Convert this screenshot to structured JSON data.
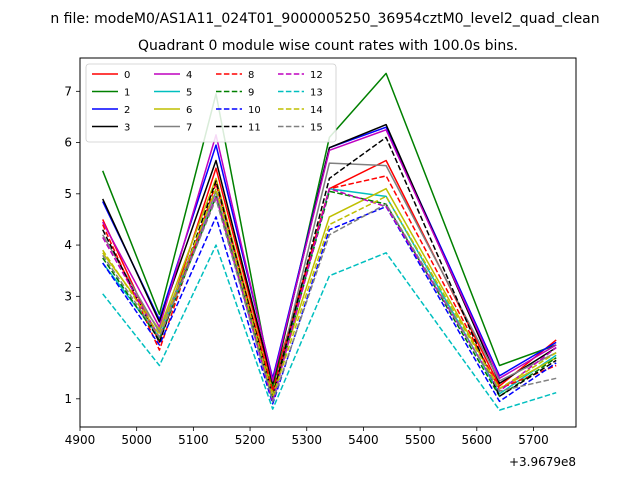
{
  "chart_data": {
    "type": "line",
    "suptitle": "n file: modeM0/AS1A11_024T01_9000005250_36954cztM0_level2_quad_clean",
    "title": "Quadrant 0 module wise count rates with 100.0s bins.",
    "xlabel": "",
    "ylabel": "",
    "x_offset_label": "+3.9679e8",
    "x_ticks": [
      "4900",
      "5000",
      "5100",
      "5200",
      "5300",
      "5400",
      "5500",
      "5600",
      "5700"
    ],
    "y_ticks": [
      "1",
      "2",
      "3",
      "4",
      "5",
      "6",
      "7"
    ],
    "xlim": [
      4900,
      5775
    ],
    "ylim": [
      0.45,
      7.65
    ],
    "grid": false,
    "legend_placement": "top-left",
    "legend_columns": 4,
    "x": [
      4940,
      5040,
      5140,
      5240,
      5340,
      5440,
      5640,
      5740
    ],
    "series": [
      {
        "name": "0",
        "color": "#ff0000",
        "style": "solid",
        "values": [
          4.5,
          2.1,
          5.5,
          1.25,
          5.1,
          5.65,
          1.25,
          2.15
        ]
      },
      {
        "name": "1",
        "color": "#008000",
        "style": "solid",
        "values": [
          5.45,
          2.65,
          6.95,
          1.2,
          6.1,
          7.35,
          1.65,
          2.05
        ]
      },
      {
        "name": "2",
        "color": "#0000ff",
        "style": "solid",
        "values": [
          4.85,
          2.55,
          5.95,
          1.4,
          5.9,
          6.3,
          1.45,
          2.1
        ]
      },
      {
        "name": "3",
        "color": "#000000",
        "style": "solid",
        "values": [
          4.9,
          2.5,
          5.65,
          1.3,
          5.9,
          6.35,
          1.3,
          2.0
        ]
      },
      {
        "name": "4",
        "color": "#bf00bf",
        "style": "solid",
        "values": [
          4.45,
          2.4,
          6.15,
          1.35,
          5.85,
          6.25,
          1.4,
          2.05
        ]
      },
      {
        "name": "5",
        "color": "#00bfbf",
        "style": "solid",
        "values": [
          3.65,
          2.2,
          5.05,
          1.05,
          5.1,
          4.95,
          1.1,
          1.85
        ]
      },
      {
        "name": "6",
        "color": "#bfbf00",
        "style": "solid",
        "values": [
          3.85,
          2.35,
          5.3,
          1.15,
          4.55,
          5.1,
          1.2,
          1.8
        ]
      },
      {
        "name": "7",
        "color": "#808080",
        "style": "solid",
        "values": [
          4.2,
          2.3,
          5.05,
          1.05,
          5.6,
          5.55,
          1.35,
          1.9
        ]
      },
      {
        "name": "8",
        "color": "#ff0000",
        "style": "dashed",
        "values": [
          4.4,
          1.95,
          5.2,
          1.15,
          5.1,
          5.35,
          1.2,
          1.65
        ]
      },
      {
        "name": "9",
        "color": "#008000",
        "style": "dashed",
        "values": [
          3.75,
          2.15,
          4.95,
          1.0,
          5.05,
          4.8,
          1.05,
          1.8
        ]
      },
      {
        "name": "10",
        "color": "#0000ff",
        "style": "dashed",
        "values": [
          3.65,
          2.05,
          4.55,
          0.9,
          4.3,
          4.75,
          0.95,
          1.7
        ]
      },
      {
        "name": "11",
        "color": "#000000",
        "style": "dashed",
        "values": [
          4.3,
          2.1,
          5.25,
          1.05,
          5.3,
          6.1,
          1.05,
          1.75
        ]
      },
      {
        "name": "12",
        "color": "#bf00bf",
        "style": "dashed",
        "values": [
          4.15,
          2.2,
          4.95,
          0.95,
          5.1,
          4.75,
          1.15,
          2.0
        ]
      },
      {
        "name": "13",
        "color": "#00bfbf",
        "style": "dashed",
        "values": [
          3.05,
          1.65,
          4.0,
          0.8,
          3.4,
          3.85,
          0.78,
          1.12
        ]
      },
      {
        "name": "14",
        "color": "#bfbf00",
        "style": "dashed",
        "values": [
          3.9,
          2.25,
          5.1,
          1.05,
          4.4,
          4.95,
          1.2,
          1.9
        ]
      },
      {
        "name": "15",
        "color": "#808080",
        "style": "dashed",
        "values": [
          3.8,
          2.2,
          4.9,
          0.95,
          4.2,
          4.8,
          1.15,
          1.4
        ]
      }
    ]
  }
}
